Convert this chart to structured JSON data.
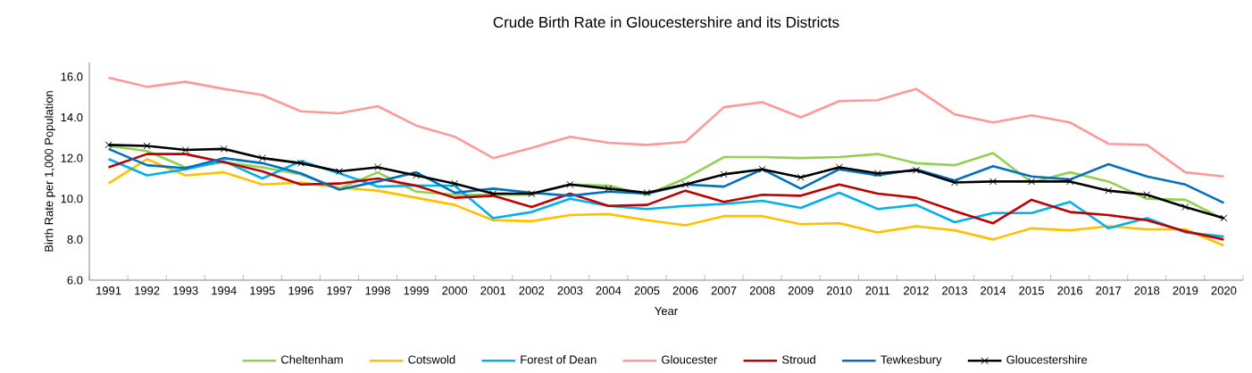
{
  "chart_data": {
    "type": "line",
    "title": "Crude Birth Rate in Gloucestershire and its Districts",
    "xlabel": "Year",
    "ylabel": "Birth Rate per 1,000 Population",
    "categories": [
      "1991",
      "1992",
      "1993",
      "1994",
      "1995",
      "1996",
      "1997",
      "1998",
      "1999",
      "2000",
      "2001",
      "2002",
      "2003",
      "2004",
      "2005",
      "2006",
      "2007",
      "2008",
      "2009",
      "2010",
      "2011",
      "2012",
      "2013",
      "2014",
      "2015",
      "2016",
      "2017",
      "2018",
      "2019",
      "2020"
    ],
    "ylim": [
      6,
      16.7
    ],
    "yticks": [
      {
        "value": 6,
        "label": "6.0"
      },
      {
        "value": 8,
        "label": "8.0"
      },
      {
        "value": 10,
        "label": "10.0"
      },
      {
        "value": 12,
        "label": "12.0"
      },
      {
        "value": 14,
        "label": "14.0"
      },
      {
        "value": 16,
        "label": "16.0"
      }
    ],
    "grid": false,
    "legend": "bottom",
    "series": [
      {
        "name": "Cheltenham",
        "color": "#92d050",
        "marker": "none",
        "values": [
          12.6,
          12.35,
          11.55,
          11.8,
          11.55,
          11.2,
          10.5,
          11.3,
          10.35,
          10.2,
          10.2,
          10.2,
          10.7,
          10.65,
          10.2,
          11.0,
          12.05,
          12.05,
          12.0,
          12.05,
          12.2,
          11.75,
          11.65,
          12.25,
          10.8,
          11.3,
          10.85,
          10.0,
          9.95,
          9.0
        ]
      },
      {
        "name": "Cotswold",
        "color": "#ffc000",
        "marker": "none",
        "values": [
          10.75,
          11.95,
          11.15,
          11.3,
          10.7,
          10.8,
          10.55,
          10.4,
          10.05,
          9.7,
          8.95,
          8.9,
          9.2,
          9.25,
          8.95,
          8.7,
          9.15,
          9.15,
          8.75,
          8.8,
          8.35,
          8.65,
          8.45,
          8.0,
          8.55,
          8.45,
          8.65,
          8.5,
          8.5,
          7.7
        ]
      },
      {
        "name": "Forest of Dean",
        "color": "#00b0f0",
        "marker": "none",
        "values": [
          11.95,
          11.15,
          11.45,
          11.85,
          11.0,
          11.85,
          11.25,
          10.6,
          10.65,
          10.65,
          9.05,
          9.35,
          10.0,
          9.65,
          9.5,
          9.65,
          9.75,
          9.9,
          9.55,
          10.3,
          9.5,
          9.7,
          8.85,
          9.3,
          9.3,
          9.85,
          8.55,
          9.05,
          8.35,
          8.15
        ]
      },
      {
        "name": "Gloucester",
        "color": "#ff9999",
        "marker": "none",
        "values": [
          15.95,
          15.5,
          15.75,
          15.4,
          15.1,
          14.3,
          14.2,
          14.55,
          13.6,
          13.05,
          12.0,
          12.5,
          13.05,
          12.75,
          12.65,
          12.8,
          14.5,
          14.75,
          14.0,
          14.8,
          14.85,
          15.4,
          14.15,
          13.75,
          14.1,
          13.75,
          12.7,
          12.65,
          11.3,
          11.1
        ]
      },
      {
        "name": "Stroud",
        "color": "#c00000",
        "marker": "none",
        "values": [
          11.55,
          12.2,
          12.2,
          11.8,
          11.35,
          10.7,
          10.75,
          11.0,
          10.65,
          10.05,
          10.15,
          9.6,
          10.25,
          9.65,
          9.7,
          10.4,
          9.85,
          10.2,
          10.15,
          10.7,
          10.25,
          10.05,
          9.4,
          8.8,
          9.95,
          9.35,
          9.2,
          8.95,
          8.4,
          8.0
        ]
      },
      {
        "name": "Tewkesbury",
        "color": "#0070c0",
        "marker": "none",
        "values": [
          12.45,
          11.65,
          11.5,
          12.0,
          11.75,
          11.25,
          10.45,
          10.85,
          11.3,
          10.3,
          10.5,
          10.3,
          10.15,
          10.35,
          10.25,
          10.7,
          10.6,
          11.45,
          10.5,
          11.45,
          11.15,
          11.45,
          10.9,
          11.6,
          11.1,
          10.95,
          11.7,
          11.1,
          10.7,
          9.8
        ]
      },
      {
        "name": "Gloucestershire",
        "color": "#000000",
        "marker": "cross",
        "values": [
          12.65,
          12.6,
          12.4,
          12.45,
          12.0,
          11.75,
          11.35,
          11.55,
          11.15,
          10.75,
          10.25,
          10.25,
          10.7,
          10.5,
          10.3,
          10.7,
          11.2,
          11.45,
          11.05,
          11.55,
          11.25,
          11.4,
          10.8,
          10.85,
          10.85,
          10.85,
          10.4,
          10.2,
          9.6,
          9.05
        ]
      }
    ]
  }
}
